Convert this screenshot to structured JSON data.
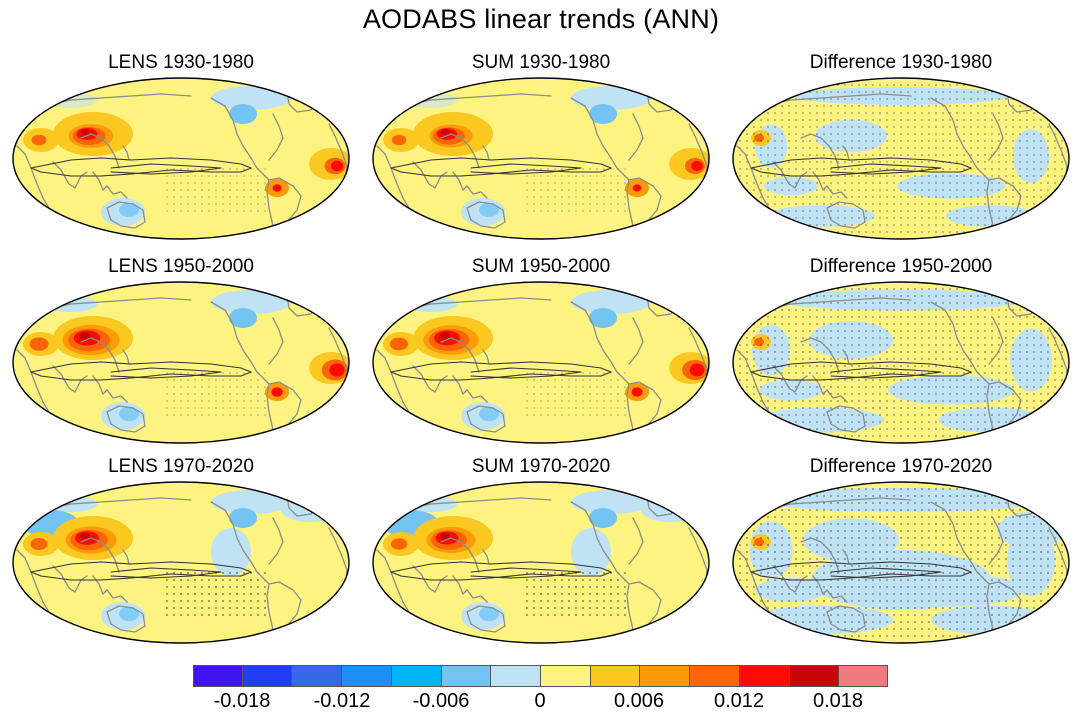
{
  "figure": {
    "title": "AODABS linear trends (ANN)"
  },
  "panels": [
    {
      "title": "LENS 1930-1980",
      "kind": "model",
      "intensity": 0.75
    },
    {
      "title": "SUM 1930-1980",
      "kind": "model",
      "intensity": 0.72
    },
    {
      "title": "Difference 1930-1980",
      "kind": "diff",
      "intensity": 0.3
    },
    {
      "title": "LENS 1950-2000",
      "kind": "model",
      "intensity": 0.95
    },
    {
      "title": "SUM 1950-2000",
      "kind": "model",
      "intensity": 0.92
    },
    {
      "title": "Difference 1950-2000",
      "kind": "diff",
      "intensity": 0.45
    },
    {
      "title": "LENS 1970-2020",
      "kind": "model",
      "intensity": 0.85
    },
    {
      "title": "SUM 1970-2020",
      "kind": "model",
      "intensity": 0.82
    },
    {
      "title": "Difference 1970-2020",
      "kind": "diff",
      "intensity": 0.6
    }
  ],
  "colorbar": {
    "labels": [
      "-0.018",
      "-0.012",
      "-0.006",
      "0",
      "0.006",
      "0.012",
      "0.018"
    ],
    "colors": [
      "#3f14f0",
      "#1f3ef2",
      "#3468e6",
      "#1e8ff5",
      "#00b4f8",
      "#73c4f4",
      "#bfe3f4",
      "#fdf380",
      "#fbc822",
      "#fc9b0a",
      "#fb6505",
      "#fc0b02",
      "#c80608",
      "#f07a7e"
    ]
  },
  "chart_data": {
    "type": "heatmap",
    "title": "AODABS linear trends (ANN)",
    "panels": [
      "LENS 1930-1980",
      "SUM 1930-1980",
      "Difference 1930-1980",
      "LENS 1950-2000",
      "SUM 1950-2000",
      "Difference 1950-2000",
      "LENS 1970-2020",
      "SUM 1970-2020",
      "Difference 1970-2020"
    ],
    "colorbar_ticks": [
      -0.018,
      -0.012,
      -0.006,
      0,
      0.006,
      0.012,
      0.018
    ]
  }
}
